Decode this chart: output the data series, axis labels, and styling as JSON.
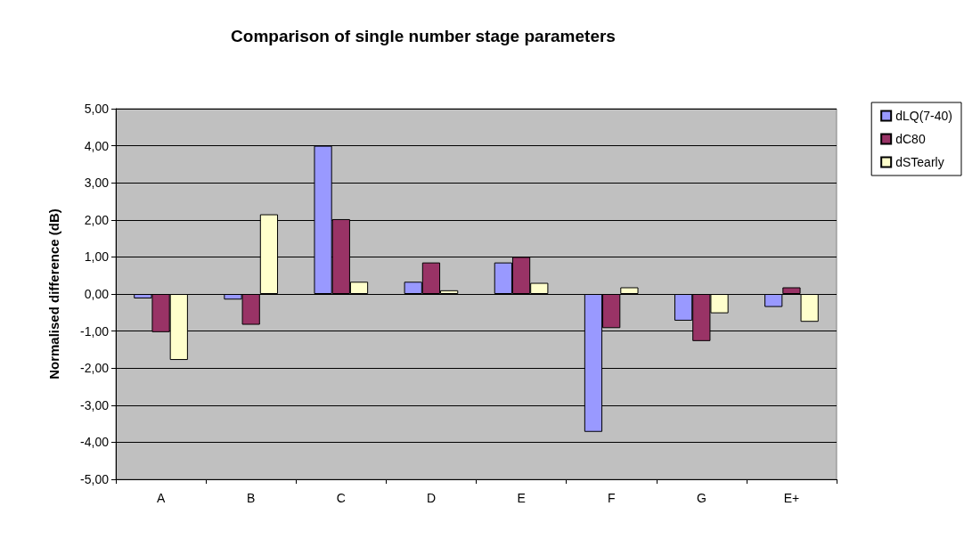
{
  "chart_data": {
    "type": "bar",
    "title": "Comparison of single number stage parameters",
    "ylabel": "Normalised difference (dB)",
    "categories": [
      "A",
      "B",
      "C",
      "D",
      "E",
      "F",
      "G",
      "E+"
    ],
    "series": [
      {
        "name": "dLQ(7-40)",
        "color": "#9999ff",
        "values": [
          -0.12,
          -0.15,
          4.0,
          0.33,
          0.85,
          -3.72,
          -0.72,
          -0.35
        ]
      },
      {
        "name": "dC80",
        "color": "#993366",
        "values": [
          -1.03,
          -0.83,
          2.02,
          0.85,
          1.0,
          -0.92,
          -1.27,
          0.18
        ]
      },
      {
        "name": "dSTearly",
        "color": "#ffffcc",
        "values": [
          -1.78,
          2.15,
          0.33,
          0.1,
          0.3,
          0.18,
          -0.52,
          -0.75
        ]
      }
    ],
    "ylim": [
      -5,
      5
    ],
    "yticks": [
      {
        "value": -5,
        "label": "-5,00"
      },
      {
        "value": -4,
        "label": "-4,00"
      },
      {
        "value": -3,
        "label": "-3,00"
      },
      {
        "value": -2,
        "label": "-2,00"
      },
      {
        "value": -1,
        "label": "-1,00"
      },
      {
        "value": 0,
        "label": "0,00"
      },
      {
        "value": 1,
        "label": "1,00"
      },
      {
        "value": 2,
        "label": "2,00"
      },
      {
        "value": 3,
        "label": "3,00"
      },
      {
        "value": 4,
        "label": "4,00"
      },
      {
        "value": 5,
        "label": "5,00"
      }
    ],
    "grid": "y",
    "legend": "right"
  }
}
